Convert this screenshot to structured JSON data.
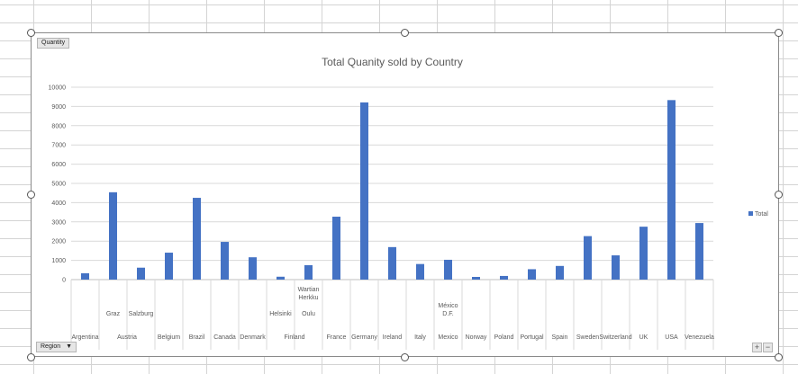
{
  "pivot": {
    "value_field": "Quantity",
    "row_field": "Region",
    "expand_symbol": "+",
    "collapse_symbol": "−"
  },
  "chart_data": {
    "type": "bar",
    "title": "Total Quanity sold by Country",
    "xlabel": "",
    "ylabel": "",
    "ylim": [
      0,
      10000
    ],
    "yticks": [
      0,
      1000,
      2000,
      3000,
      4000,
      5000,
      6000,
      7000,
      8000,
      9000,
      10000
    ],
    "grid": true,
    "legend_position": "right",
    "bar_color": "#4472c4",
    "series": [
      {
        "name": "Total",
        "values": [
          330,
          4540,
          620,
          1400,
          4250,
          1960,
          1160,
          150,
          750,
          3270,
          9210,
          1690,
          810,
          1030,
          140,
          190,
          540,
          710,
          2260,
          1260,
          2750,
          9330,
          2940
        ]
      }
    ],
    "categories": [
      {
        "country": "Argentina",
        "region": ""
      },
      {
        "country": "Austria",
        "region": "Graz"
      },
      {
        "country": "",
        "region": "Salzburg"
      },
      {
        "country": "Belgium",
        "region": ""
      },
      {
        "country": "Brazil",
        "region": ""
      },
      {
        "country": "Canada",
        "region": ""
      },
      {
        "country": "Denmark",
        "region": ""
      },
      {
        "country": "Finland",
        "region": "Helsinki"
      },
      {
        "country": "",
        "region": "Oulu"
      },
      {
        "country": "France",
        "region": ""
      },
      {
        "country": "Germany",
        "region": ""
      },
      {
        "country": "Ireland",
        "region": ""
      },
      {
        "country": "Italy",
        "region": ""
      },
      {
        "country": "Mexico",
        "region": "México D.F."
      },
      {
        "country": "Norway",
        "region": ""
      },
      {
        "country": "Poland",
        "region": ""
      },
      {
        "country": "Portugal",
        "region": ""
      },
      {
        "country": "Spain",
        "region": ""
      },
      {
        "country": "Sweden",
        "region": ""
      },
      {
        "country": "Switzerland",
        "region": ""
      },
      {
        "country": "UK",
        "region": ""
      },
      {
        "country": "USA",
        "region": ""
      },
      {
        "country": "Venezuela",
        "region": ""
      }
    ],
    "region_overflow_label": "Wartian Herkku"
  }
}
